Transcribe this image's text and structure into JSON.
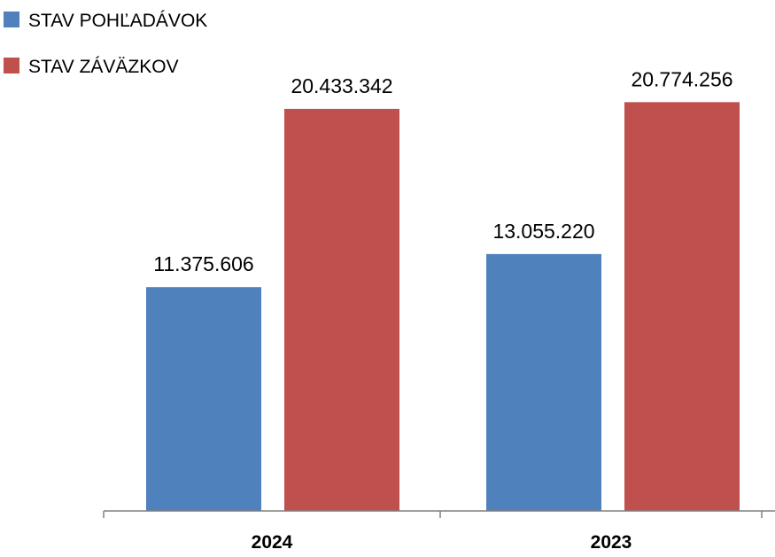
{
  "chart_data": {
    "type": "bar",
    "categories": [
      "2024",
      "2023"
    ],
    "series": [
      {
        "name": "STAV POHĽADÁVOK",
        "color": "#4F81BD",
        "values": [
          11375606,
          13055220
        ],
        "labels": [
          "11.375.606",
          "13.055.220"
        ]
      },
      {
        "name": "STAV ZÁVÄZKOV",
        "color": "#C0504D",
        "values": [
          20433342,
          20774256
        ],
        "labels": [
          "20.433.342",
          "20.774.256"
        ]
      }
    ],
    "title": "",
    "xlabel": "",
    "ylabel": "",
    "ylim": [
      0,
      22500000
    ],
    "grid": false,
    "legend": "top-left",
    "axis_color": "#808080"
  }
}
